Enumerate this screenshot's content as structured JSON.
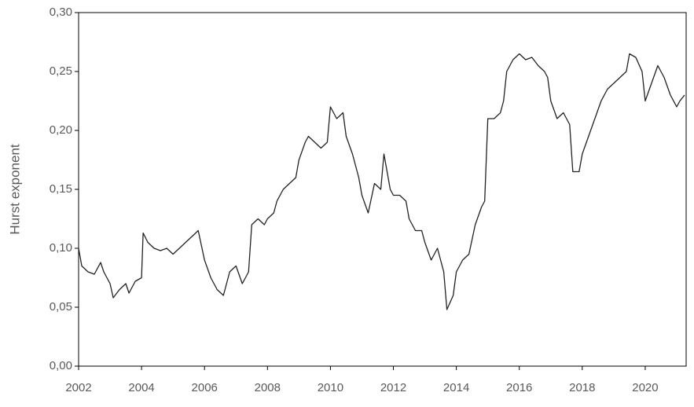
{
  "chart_data": {
    "type": "line",
    "y_label": "Hurst exponent",
    "x": [
      2002.0,
      2002.1,
      2002.3,
      2002.5,
      2002.7,
      2002.8,
      2003.0,
      2003.1,
      2003.3,
      2003.5,
      2003.6,
      2003.8,
      2004.0,
      2004.05,
      2004.2,
      2004.4,
      2004.6,
      2004.8,
      2005.0,
      2005.2,
      2005.4,
      2005.6,
      2005.8,
      2006.0,
      2006.2,
      2006.4,
      2006.6,
      2006.8,
      2007.0,
      2007.2,
      2007.4,
      2007.5,
      2007.7,
      2007.9,
      2008.0,
      2008.2,
      2008.3,
      2008.5,
      2008.7,
      2008.9,
      2009.0,
      2009.2,
      2009.3,
      2009.5,
      2009.7,
      2009.9,
      2010.0,
      2010.2,
      2010.4,
      2010.5,
      2010.7,
      2010.9,
      2011.0,
      2011.2,
      2011.4,
      2011.6,
      2011.7,
      2011.9,
      2012.0,
      2012.2,
      2012.4,
      2012.5,
      2012.7,
      2012.9,
      2013.0,
      2013.2,
      2013.4,
      2013.6,
      2013.7,
      2013.9,
      2014.0,
      2014.2,
      2014.4,
      2014.6,
      2014.8,
      2014.9,
      2015.0,
      2015.2,
      2015.4,
      2015.5,
      2015.6,
      2015.8,
      2016.0,
      2016.2,
      2016.4,
      2016.6,
      2016.8,
      2016.9,
      2017.0,
      2017.2,
      2017.4,
      2017.6,
      2017.7,
      2017.9,
      2018.0,
      2018.2,
      2018.4,
      2018.6,
      2018.8,
      2019.0,
      2019.2,
      2019.4,
      2019.5,
      2019.7,
      2019.9,
      2020.0,
      2020.2,
      2020.4,
      2020.6,
      2020.8,
      2021.0,
      2021.1,
      2021.25
    ],
    "series": [
      {
        "color": "#222222",
        "values": [
          0.1,
          0.085,
          0.08,
          0.078,
          0.088,
          0.08,
          0.07,
          0.058,
          0.065,
          0.07,
          0.062,
          0.072,
          0.075,
          0.113,
          0.105,
          0.1,
          0.098,
          0.1,
          0.095,
          0.1,
          0.105,
          0.11,
          0.115,
          0.09,
          0.075,
          0.065,
          0.06,
          0.08,
          0.085,
          0.07,
          0.08,
          0.12,
          0.125,
          0.12,
          0.125,
          0.13,
          0.14,
          0.15,
          0.155,
          0.16,
          0.175,
          0.19,
          0.195,
          0.19,
          0.185,
          0.19,
          0.22,
          0.21,
          0.215,
          0.195,
          0.18,
          0.16,
          0.145,
          0.13,
          0.155,
          0.15,
          0.18,
          0.15,
          0.145,
          0.145,
          0.14,
          0.125,
          0.115,
          0.115,
          0.105,
          0.09,
          0.1,
          0.08,
          0.048,
          0.06,
          0.08,
          0.09,
          0.095,
          0.12,
          0.135,
          0.14,
          0.21,
          0.21,
          0.215,
          0.225,
          0.25,
          0.26,
          0.265,
          0.26,
          0.262,
          0.255,
          0.25,
          0.245,
          0.225,
          0.21,
          0.215,
          0.205,
          0.165,
          0.165,
          0.18,
          0.195,
          0.21,
          0.225,
          0.235,
          0.24,
          0.245,
          0.25,
          0.265,
          0.262,
          0.25,
          0.225,
          0.24,
          0.255,
          0.245,
          0.23,
          0.22,
          0.225,
          0.23
        ]
      }
    ],
    "xlim": [
      2002,
      2021.3
    ],
    "xticks": [
      2002,
      2004,
      2006,
      2008,
      2010,
      2012,
      2014,
      2016,
      2018,
      2020
    ],
    "ylim": [
      0,
      0.3
    ],
    "yticks": [
      {
        "value": 0,
        "label": "0,00"
      },
      {
        "value": 0.05,
        "label": "0,05"
      },
      {
        "value": 0.1,
        "label": "0,10"
      },
      {
        "value": 0.15,
        "label": "0,15"
      },
      {
        "value": 0.2,
        "label": "0,20"
      },
      {
        "value": 0.25,
        "label": "0,25"
      },
      {
        "value": 0.3,
        "label": "0,30"
      }
    ],
    "grid": false
  }
}
